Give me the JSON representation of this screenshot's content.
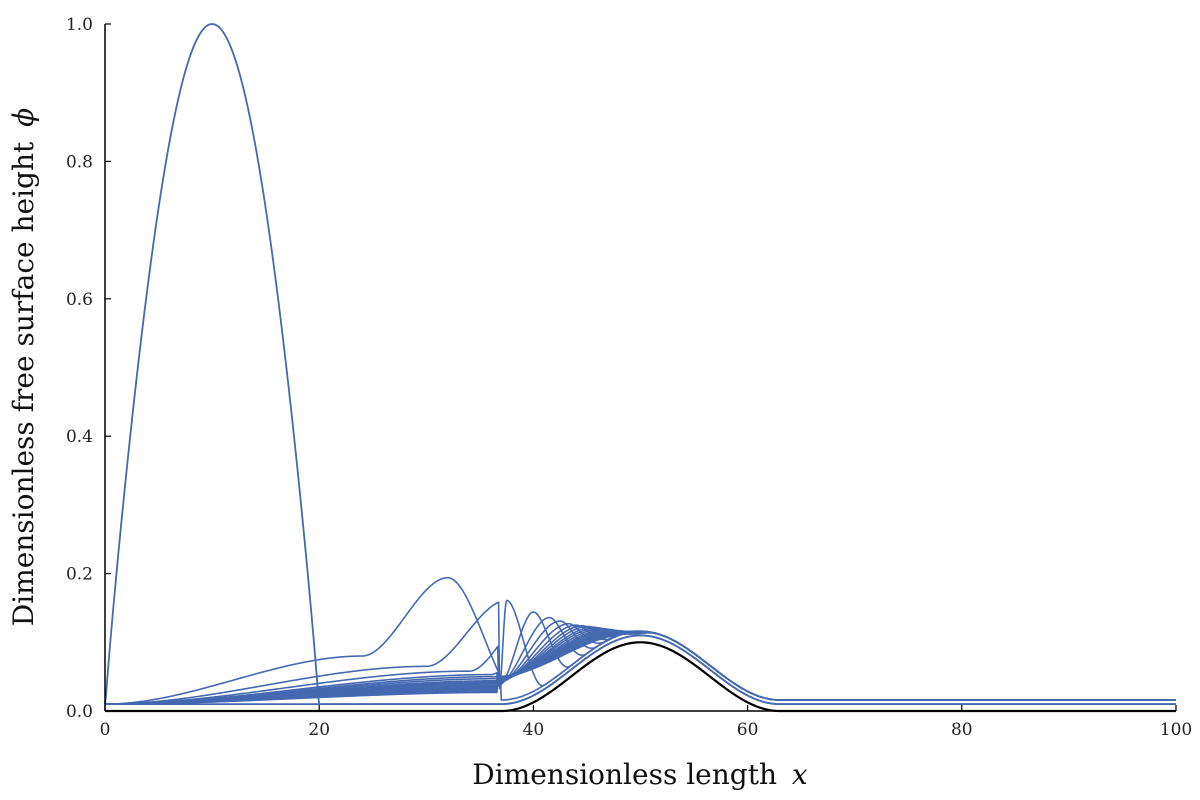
{
  "chart_data": {
    "type": "line",
    "xlabel": "Dimensionless length",
    "xlabel_var": "x",
    "ylabel": "Dimensionless free surface height",
    "ylabel_var": "ϕ",
    "xlim": [
      0,
      100
    ],
    "ylim": [
      0,
      1.0
    ],
    "xticks": [
      "0",
      "20",
      "40",
      "60",
      "80",
      "100"
    ],
    "yticks": [
      "0.0",
      "0.2",
      "0.4",
      "0.6",
      "0.8",
      "1.0"
    ],
    "grid": false,
    "colors": {
      "series": "#4469b0",
      "bed": "#000000"
    },
    "bed": {
      "x0": 37,
      "x1": 63,
      "peak_x": 50,
      "peak": 0.1,
      "baseline": 0.0
    },
    "initial_pulse": {
      "x0": 0,
      "x1": 20,
      "peak_x": 10,
      "peak": 1.0,
      "baseline": 0.01
    },
    "snapshots": [
      {
        "tail": 0.08,
        "front": 24,
        "pk_x": 32,
        "pk": 0.194,
        "toe": 37,
        "toe_h": 0.012
      },
      {
        "tail": 0.065,
        "front": 30,
        "pk_x": 37.5,
        "pk": 0.161,
        "toe": 36.8,
        "toe_h": 0.032
      },
      {
        "tail": 0.058,
        "front": 34,
        "pk_x": 40,
        "pk": 0.144,
        "toe": 36.7,
        "toe_h": 0.036
      },
      {
        "tail": 0.053,
        "front": 36,
        "pk_x": 41.5,
        "pk": 0.136,
        "toe": 36.6,
        "toe_h": 0.038
      },
      {
        "tail": 0.05,
        "front": 36.6,
        "pk_x": 42.5,
        "pk": 0.131,
        "toe": 36.6,
        "toe_h": 0.04
      },
      {
        "tail": 0.047,
        "front": 36.6,
        "pk_x": 43.3,
        "pk": 0.127,
        "toe": 36.6,
        "toe_h": 0.041
      },
      {
        "tail": 0.044,
        "front": 36.6,
        "pk_x": 44,
        "pk": 0.125,
        "toe": 36.6,
        "toe_h": 0.042
      },
      {
        "tail": 0.042,
        "front": 36.6,
        "pk_x": 44.6,
        "pk": 0.124,
        "toe": 36.6,
        "toe_h": 0.043
      },
      {
        "tail": 0.04,
        "front": 36.6,
        "pk_x": 45.1,
        "pk": 0.123,
        "toe": 36.6,
        "toe_h": 0.044
      },
      {
        "tail": 0.038,
        "front": 36.6,
        "pk_x": 45.6,
        "pk": 0.122,
        "toe": 36.6,
        "toe_h": 0.045
      },
      {
        "tail": 0.036,
        "front": 36.6,
        "pk_x": 46,
        "pk": 0.121,
        "toe": 36.6,
        "toe_h": 0.046
      },
      {
        "tail": 0.035,
        "front": 36.6,
        "pk_x": 46.4,
        "pk": 0.12,
        "toe": 36.6,
        "toe_h": 0.046
      },
      {
        "tail": 0.034,
        "front": 36.6,
        "pk_x": 46.8,
        "pk": 0.119,
        "toe": 36.6,
        "toe_h": 0.047
      },
      {
        "tail": 0.033,
        "front": 36.6,
        "pk_x": 47.1,
        "pk": 0.118,
        "toe": 36.6,
        "toe_h": 0.047
      },
      {
        "tail": 0.032,
        "front": 36.6,
        "pk_x": 47.4,
        "pk": 0.117,
        "toe": 36.6,
        "toe_h": 0.048
      },
      {
        "tail": 0.031,
        "front": 36.6,
        "pk_x": 47.7,
        "pk": 0.116,
        "toe": 36.6,
        "toe_h": 0.048
      },
      {
        "tail": 0.03,
        "front": 36.6,
        "pk_x": 48,
        "pk": 0.115,
        "toe": 36.6,
        "toe_h": 0.049
      },
      {
        "tail": 0.029,
        "front": 36.6,
        "pk_x": 48.3,
        "pk": 0.114,
        "toe": 36.6,
        "toe_h": 0.049
      },
      {
        "tail": 0.028,
        "front": 36.6,
        "pk_x": 48.6,
        "pk": 0.113,
        "toe": 36.6,
        "toe_h": 0.05
      },
      {
        "tail": 0.027,
        "front": 36.6,
        "pk_x": 48.9,
        "pk": 0.112,
        "toe": 36.6,
        "toe_h": 0.05
      }
    ],
    "steady_offset": 0.01
  }
}
